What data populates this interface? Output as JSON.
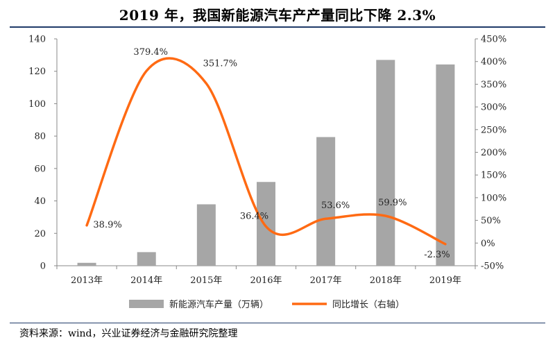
{
  "title": "2019 年，我国新能源汽车产产量同比下降 2.3%",
  "source": "资料来源：wind，兴业证券经济与金融研究院整理",
  "colors": {
    "bar": "#a6a6a6",
    "line": "#ff6a13",
    "rule": "#1f3a68",
    "axis": "#888888"
  },
  "chart_data": {
    "type": "bar+line",
    "title": "2019 年，我国新能源汽车产产量同比下降 2.3%",
    "categories": [
      "2013年",
      "2014年",
      "2015年",
      "2016年",
      "2017年",
      "2018年",
      "2019年"
    ],
    "series": [
      {
        "name": "新能源汽车产量（万辆）",
        "type": "bar",
        "axis": "left",
        "values": [
          1.8,
          8.4,
          37.9,
          51.7,
          79.4,
          127.0,
          124.2
        ]
      },
      {
        "name": "同比增长（右轴）",
        "type": "line",
        "axis": "right",
        "values": [
          38.9,
          379.4,
          351.7,
          36.4,
          53.6,
          59.9,
          -2.3
        ],
        "labels": [
          "38.9%",
          "379.4%",
          "351.7%",
          "36.4%",
          "53.6%",
          "59.9%",
          "-2.3%"
        ]
      }
    ],
    "left_axis": {
      "min": 0,
      "max": 140,
      "step": 20,
      "ticks": [
        "0",
        "20",
        "40",
        "60",
        "80",
        "100",
        "120",
        "140"
      ]
    },
    "right_axis": {
      "min": -50,
      "max": 450,
      "step": 50,
      "ticks": [
        "-50%",
        "0%",
        "50%",
        "100%",
        "150%",
        "200%",
        "250%",
        "300%",
        "350%",
        "400%",
        "450%"
      ]
    },
    "legend": {
      "position": "bottom",
      "items": [
        "新能源汽车产量（万辆）",
        "同比增长（右轴）"
      ]
    }
  }
}
